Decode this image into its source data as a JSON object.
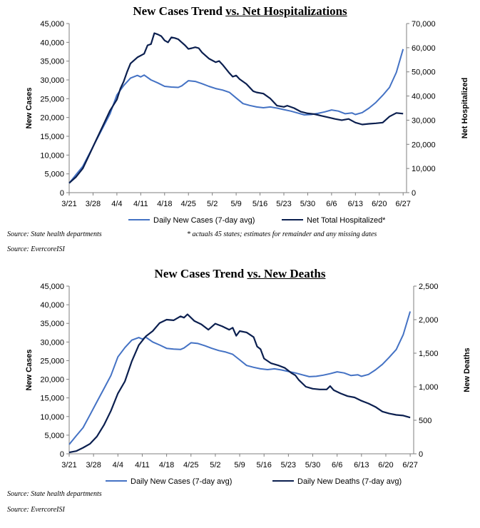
{
  "chart_data": [
    {
      "type": "line",
      "title_main": "New Cases Trend ",
      "title_underlined": "vs. Net Hospitalizations",
      "ylabel": "New Cases",
      "y2label": "Net Hospitalized",
      "ylim": [
        0,
        45000
      ],
      "y2lim": [
        0,
        70000
      ],
      "yticks": [
        "0",
        "5,000",
        "10,000",
        "15,000",
        "20,000",
        "25,000",
        "30,000",
        "35,000",
        "40,000",
        "45,000"
      ],
      "y2ticks": [
        "0",
        "10,000",
        "20,000",
        "30,000",
        "40,000",
        "50,000",
        "60,000",
        "70,000"
      ],
      "xlim": [
        0,
        99
      ],
      "xticks": [
        {
          "label": "3/21",
          "x": 0
        },
        {
          "label": "3/28",
          "x": 7
        },
        {
          "label": "4/4",
          "x": 14
        },
        {
          "label": "4/11",
          "x": 21
        },
        {
          "label": "4/18",
          "x": 28
        },
        {
          "label": "4/25",
          "x": 35
        },
        {
          "label": "5/2",
          "x": 42
        },
        {
          "label": "5/9",
          "x": 49
        },
        {
          "label": "5/16",
          "x": 56
        },
        {
          "label": "5/23",
          "x": 63
        },
        {
          "label": "5/30",
          "x": 70
        },
        {
          "label": "6/6",
          "x": 77
        },
        {
          "label": "6/13",
          "x": 84
        },
        {
          "label": "6/20",
          "x": 91
        },
        {
          "label": "6/27",
          "x": 98
        }
      ],
      "legend_placement": "bottom",
      "grid": false,
      "note": "* actuals 45 states; estimates for remainder and any missing dates",
      "source": "Source: State health departments",
      "source2": "Source: EvercoreISI",
      "series": [
        {
          "name": "Daily New Cases (7-day avg)",
          "axis": "left",
          "color": "#4472C4",
          "points": [
            [
              0,
              2500
            ],
            [
              2,
              4800
            ],
            [
              4,
              7000
            ],
            [
              6,
              10500
            ],
            [
              8,
              14000
            ],
            [
              10,
              17500
            ],
            [
              12,
              21000
            ],
            [
              14,
              26000
            ],
            [
              16,
              28500
            ],
            [
              18,
              30500
            ],
            [
              20,
              31200
            ],
            [
              21,
              30800
            ],
            [
              22,
              31300
            ],
            [
              24,
              30000
            ],
            [
              26,
              29200
            ],
            [
              28,
              28300
            ],
            [
              30,
              28100
            ],
            [
              32,
              28000
            ],
            [
              33,
              28400
            ],
            [
              35,
              29800
            ],
            [
              37,
              29600
            ],
            [
              39,
              29000
            ],
            [
              41,
              28300
            ],
            [
              43,
              27700
            ],
            [
              45,
              27300
            ],
            [
              47,
              26700
            ],
            [
              49,
              25200
            ],
            [
              51,
              23700
            ],
            [
              53,
              23200
            ],
            [
              55,
              22800
            ],
            [
              57,
              22600
            ],
            [
              59,
              22800
            ],
            [
              61,
              22500
            ],
            [
              63,
              22100
            ],
            [
              65,
              21700
            ],
            [
              67,
              21200
            ],
            [
              69,
              20700
            ],
            [
              71,
              20800
            ],
            [
              73,
              21100
            ],
            [
              75,
              21500
            ],
            [
              77,
              22000
            ],
            [
              79,
              21700
            ],
            [
              81,
              21000
            ],
            [
              83,
              21200
            ],
            [
              84,
              20800
            ],
            [
              86,
              21300
            ],
            [
              88,
              22500
            ],
            [
              90,
              24000
            ],
            [
              92,
              25900
            ],
            [
              94,
              28000
            ],
            [
              96,
              32000
            ],
            [
              98,
              38200
            ]
          ]
        },
        {
          "name": "Net Total Hospitalized*",
          "axis": "right",
          "color": "#0B1F4F",
          "points": [
            [
              0,
              4000
            ],
            [
              2,
              6500
            ],
            [
              4,
              10000
            ],
            [
              6,
              16000
            ],
            [
              8,
              22000
            ],
            [
              10,
              28000
            ],
            [
              12,
              34000
            ],
            [
              14,
              38500
            ],
            [
              15,
              43000
            ],
            [
              16,
              46000
            ],
            [
              17,
              50000
            ],
            [
              18,
              53500
            ],
            [
              20,
              56000
            ],
            [
              22,
              57500
            ],
            [
              23,
              61000
            ],
            [
              24,
              61500
            ],
            [
              25,
              66000
            ],
            [
              26,
              65500
            ],
            [
              27,
              64800
            ],
            [
              28,
              63000
            ],
            [
              29,
              62200
            ],
            [
              30,
              64300
            ],
            [
              31,
              64000
            ],
            [
              32,
              63500
            ],
            [
              34,
              61000
            ],
            [
              35,
              59500
            ],
            [
              36,
              59800
            ],
            [
              37,
              60200
            ],
            [
              38,
              59800
            ],
            [
              39,
              58000
            ],
            [
              41,
              55500
            ],
            [
              43,
              54000
            ],
            [
              44,
              54500
            ],
            [
              45,
              53000
            ],
            [
              47,
              49500
            ],
            [
              48,
              48000
            ],
            [
              49,
              48500
            ],
            [
              50,
              47000
            ],
            [
              52,
              45000
            ],
            [
              54,
              42000
            ],
            [
              55,
              41500
            ],
            [
              57,
              41000
            ],
            [
              59,
              39000
            ],
            [
              61,
              36000
            ],
            [
              63,
              35500
            ],
            [
              64,
              36000
            ],
            [
              66,
              35000
            ],
            [
              68,
              33500
            ],
            [
              70,
              32800
            ],
            [
              72,
              32500
            ],
            [
              74,
              31800
            ],
            [
              76,
              31200
            ],
            [
              78,
              30500
            ],
            [
              80,
              30000
            ],
            [
              82,
              30500
            ],
            [
              84,
              29000
            ],
            [
              86,
              28200
            ],
            [
              88,
              28500
            ],
            [
              90,
              28700
            ],
            [
              92,
              29000
            ],
            [
              94,
              31500
            ],
            [
              96,
              33000
            ],
            [
              98,
              32700
            ]
          ]
        }
      ]
    },
    {
      "type": "line",
      "title_main": "New Cases Trend ",
      "title_underlined": "vs. New Deaths",
      "ylabel": "New Cases",
      "y2label": "New Deaths",
      "ylim": [
        0,
        45000
      ],
      "y2lim": [
        0,
        2500
      ],
      "yticks": [
        "0",
        "5,000",
        "10,000",
        "15,000",
        "20,000",
        "25,000",
        "30,000",
        "35,000",
        "40,000",
        "45,000"
      ],
      "y2ticks": [
        "0",
        "500",
        "1,000",
        "1,500",
        "2,000",
        "2,500"
      ],
      "xlim": [
        0,
        99
      ],
      "xticks": [
        {
          "label": "3/21",
          "x": 0
        },
        {
          "label": "3/28",
          "x": 7
        },
        {
          "label": "4/4",
          "x": 14
        },
        {
          "label": "4/11",
          "x": 21
        },
        {
          "label": "4/18",
          "x": 28
        },
        {
          "label": "4/25",
          "x": 35
        },
        {
          "label": "5/2",
          "x": 42
        },
        {
          "label": "5/9",
          "x": 49
        },
        {
          "label": "5/16",
          "x": 56
        },
        {
          "label": "5/23",
          "x": 63
        },
        {
          "label": "5/30",
          "x": 70
        },
        {
          "label": "6/6",
          "x": 77
        },
        {
          "label": "6/13",
          "x": 84
        },
        {
          "label": "6/20",
          "x": 91
        },
        {
          "label": "6/27",
          "x": 98
        }
      ],
      "legend_placement": "bottom",
      "grid": false,
      "source": "Source: State health departments",
      "source2": "Source: EvercoreISI",
      "series": [
        {
          "name": "Daily New Cases (7-day avg)",
          "axis": "left",
          "color": "#4472C4",
          "points": [
            [
              0,
              2500
            ],
            [
              2,
              4800
            ],
            [
              4,
              7000
            ],
            [
              6,
              10500
            ],
            [
              8,
              14000
            ],
            [
              10,
              17500
            ],
            [
              12,
              21000
            ],
            [
              14,
              26000
            ],
            [
              16,
              28500
            ],
            [
              18,
              30500
            ],
            [
              20,
              31200
            ],
            [
              21,
              30800
            ],
            [
              22,
              31300
            ],
            [
              24,
              30000
            ],
            [
              26,
              29200
            ],
            [
              28,
              28300
            ],
            [
              30,
              28100
            ],
            [
              32,
              28000
            ],
            [
              33,
              28400
            ],
            [
              35,
              29800
            ],
            [
              37,
              29600
            ],
            [
              39,
              29000
            ],
            [
              41,
              28300
            ],
            [
              43,
              27700
            ],
            [
              45,
              27300
            ],
            [
              47,
              26700
            ],
            [
              49,
              25200
            ],
            [
              51,
              23700
            ],
            [
              53,
              23200
            ],
            [
              55,
              22800
            ],
            [
              57,
              22600
            ],
            [
              59,
              22800
            ],
            [
              61,
              22500
            ],
            [
              63,
              22100
            ],
            [
              65,
              21700
            ],
            [
              67,
              21200
            ],
            [
              69,
              20700
            ],
            [
              71,
              20800
            ],
            [
              73,
              21100
            ],
            [
              75,
              21500
            ],
            [
              77,
              22000
            ],
            [
              79,
              21700
            ],
            [
              81,
              21000
            ],
            [
              83,
              21200
            ],
            [
              84,
              20800
            ],
            [
              86,
              21300
            ],
            [
              88,
              22500
            ],
            [
              90,
              24000
            ],
            [
              92,
              25900
            ],
            [
              94,
              28000
            ],
            [
              96,
              32000
            ],
            [
              98,
              38200
            ]
          ]
        },
        {
          "name": "Daily New Deaths (7-day avg)",
          "axis": "right",
          "color": "#0B1F4F",
          "points": [
            [
              0,
              20
            ],
            [
              2,
              40
            ],
            [
              4,
              90
            ],
            [
              6,
              150
            ],
            [
              8,
              260
            ],
            [
              10,
              430
            ],
            [
              12,
              640
            ],
            [
              14,
              900
            ],
            [
              16,
              1080
            ],
            [
              18,
              1380
            ],
            [
              20,
              1620
            ],
            [
              22,
              1750
            ],
            [
              24,
              1830
            ],
            [
              26,
              1950
            ],
            [
              28,
              2000
            ],
            [
              30,
              1990
            ],
            [
              32,
              2050
            ],
            [
              33,
              2030
            ],
            [
              34,
              2080
            ],
            [
              36,
              1980
            ],
            [
              38,
              1930
            ],
            [
              40,
              1850
            ],
            [
              42,
              1940
            ],
            [
              44,
              1900
            ],
            [
              46,
              1850
            ],
            [
              47,
              1880
            ],
            [
              48,
              1760
            ],
            [
              49,
              1830
            ],
            [
              51,
              1810
            ],
            [
              53,
              1740
            ],
            [
              54,
              1600
            ],
            [
              55,
              1560
            ],
            [
              56,
              1420
            ],
            [
              58,
              1350
            ],
            [
              60,
              1320
            ],
            [
              62,
              1280
            ],
            [
              64,
              1200
            ],
            [
              65,
              1170
            ],
            [
              66,
              1100
            ],
            [
              68,
              1000
            ],
            [
              70,
              970
            ],
            [
              72,
              960
            ],
            [
              74,
              960
            ],
            [
              75,
              1010
            ],
            [
              76,
              950
            ],
            [
              78,
              900
            ],
            [
              80,
              860
            ],
            [
              82,
              840
            ],
            [
              84,
              790
            ],
            [
              86,
              750
            ],
            [
              88,
              700
            ],
            [
              90,
              630
            ],
            [
              92,
              600
            ],
            [
              94,
              580
            ],
            [
              96,
              570
            ],
            [
              98,
              540
            ]
          ]
        }
      ]
    }
  ]
}
